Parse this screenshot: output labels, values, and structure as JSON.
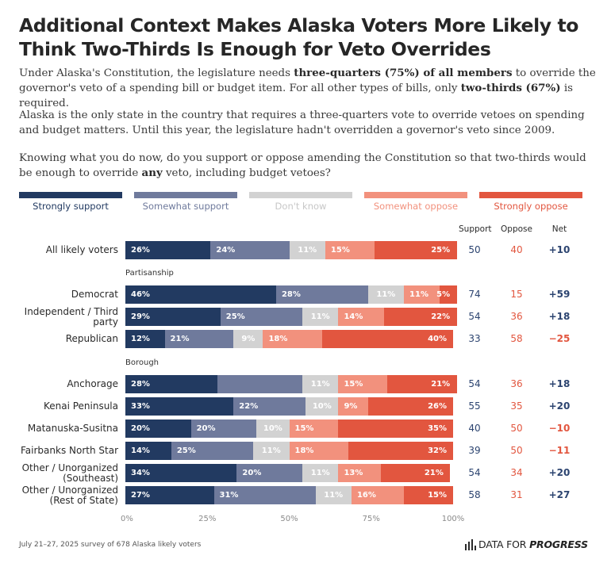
{
  "title": "Additional Context Makes Alaska Voters More Likely to Think Two-Thirds Is Enough for Veto Overrides",
  "intro": [
    [
      {
        "t": "Under Alaska's Constitution, the legislature needs ",
        "b": false
      },
      {
        "t": "three-quarters (75%) of all members",
        "b": true
      },
      {
        "t": " to override the governor's veto of a spending bill or budget item. For all other types of bills, only ",
        "b": false
      },
      {
        "t": "two-thirds (67%)",
        "b": true
      },
      {
        "t": " is required.",
        "b": false
      }
    ],
    [
      {
        "t": "Alaska is the only state in the country that requires a three-quarters vote to override vetoes on spending and budget matters. Until this year, the legislature hadn't overridden a governor's veto since 2009.",
        "b": false
      }
    ],
    [
      {
        "t": "Knowing what you do now, do you support or oppose amending the Constitution so that two-thirds would be enough to override ",
        "b": false
      },
      {
        "t": "any",
        "b": true
      },
      {
        "t": " veto, including budget vetoes?",
        "b": false
      }
    ]
  ],
  "colors": {
    "strongly_support": "#223a61",
    "somewhat_support": "#6f7a9c",
    "dont_know": "#d2d2d2",
    "somewhat_oppose": "#f2917d",
    "strongly_oppose": "#e2563f",
    "support_text": "#2c4470",
    "oppose_text": "#e2563f"
  },
  "columns": {
    "support": "Support",
    "oppose": "Oppose",
    "net": "Net"
  },
  "footer": "July 21–27, 2025 survey of 678 Alaska likely voters",
  "brand": {
    "prefix": "DATA FOR ",
    "emphasis": "PROGRESS"
  },
  "chart_data": {
    "type": "bar",
    "orientation": "horizontal",
    "stacked": true,
    "xlim": [
      0,
      100
    ],
    "x_ticks": [
      "0%",
      "25%",
      "50%",
      "75%",
      "100%"
    ],
    "legend_placement": "top",
    "series_names": [
      "Strongly support",
      "Somewhat support",
      "Don't know",
      "Somewhat oppose",
      "Strongly oppose"
    ],
    "rows": [
      {
        "label": "All likely voters",
        "group": "",
        "values": [
          26,
          24,
          11,
          15,
          25
        ],
        "support": "50",
        "oppose": "40",
        "net": "+10"
      },
      {
        "label": "Democrat",
        "group": "Partisanship",
        "values": [
          46,
          28,
          11,
          11,
          5
        ],
        "support": "74",
        "oppose": "15",
        "net": "+59"
      },
      {
        "label": "Independent / Third party",
        "group": "Partisanship",
        "values": [
          29,
          25,
          11,
          14,
          22
        ],
        "support": "54",
        "oppose": "36",
        "net": "+18"
      },
      {
        "label": "Republican",
        "group": "Partisanship",
        "values": [
          12,
          21,
          9,
          18,
          40
        ],
        "support": "33",
        "oppose": "58",
        "net": "−25"
      },
      {
        "label": "Anchorage",
        "group": "Borough",
        "values": [
          28,
          26,
          11,
          15,
          21
        ],
        "support": "54",
        "oppose": "36",
        "net": "+18"
      },
      {
        "label": "Kenai Peninsula",
        "group": "Borough",
        "values": [
          33,
          22,
          10,
          9,
          26
        ],
        "support": "55",
        "oppose": "35",
        "net": "+20"
      },
      {
        "label": "Matanuska-Susitna",
        "group": "Borough",
        "values": [
          20,
          20,
          10,
          15,
          35
        ],
        "support": "40",
        "oppose": "50",
        "net": "−10"
      },
      {
        "label": "Fairbanks North Star",
        "group": "Borough",
        "values": [
          14,
          25,
          11,
          18,
          32
        ],
        "support": "39",
        "oppose": "50",
        "net": "−11"
      },
      {
        "label": "Other / Unorganized (Southeast)",
        "group": "Borough",
        "values": [
          34,
          20,
          11,
          13,
          21
        ],
        "support": "54",
        "oppose": "34",
        "net": "+20"
      },
      {
        "label": "Other / Unorganized (Rest of State)",
        "group": "Borough",
        "values": [
          27,
          31,
          11,
          16,
          15
        ],
        "support": "58",
        "oppose": "31",
        "net": "+27"
      }
    ],
    "value_labels_hidden": [
      [
        4,
        1,
        4
      ]
    ]
  }
}
